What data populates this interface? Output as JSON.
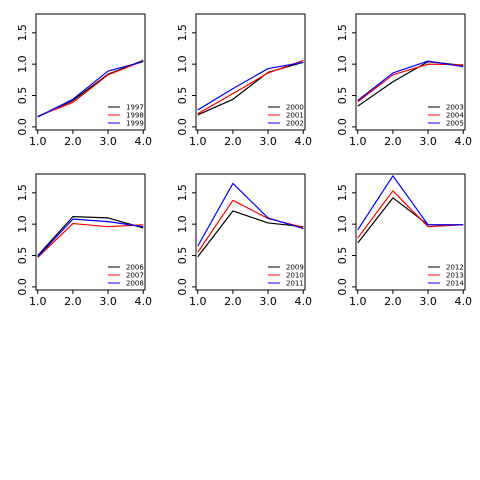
{
  "chart_data": [
    {
      "type": "line",
      "x": [
        1,
        2,
        3,
        4
      ],
      "xticks": [
        "1.0",
        "2.0",
        "3.0",
        "4.0"
      ],
      "yticks": [
        "0.0",
        "0.5",
        "1.0",
        "1.5"
      ],
      "ylim": [
        -0.05,
        1.8
      ],
      "xlim": [
        0.95,
        4.05
      ],
      "legend_position": "bottom-right",
      "series": [
        {
          "name": "1997",
          "color": "#000000",
          "values": [
            0.16,
            0.42,
            0.84,
            1.06
          ]
        },
        {
          "name": "1998",
          "color": "#ff0000",
          "values": [
            0.17,
            0.39,
            0.83,
            1.05
          ]
        },
        {
          "name": "1999",
          "color": "#0000ff",
          "values": [
            0.16,
            0.44,
            0.89,
            1.04
          ]
        }
      ]
    },
    {
      "type": "line",
      "x": [
        1,
        2,
        3,
        4
      ],
      "xticks": [
        "1.0",
        "2.0",
        "3.0",
        "4.0"
      ],
      "yticks": [
        "0.0",
        "0.5",
        "1.0",
        "1.5"
      ],
      "ylim": [
        -0.05,
        1.8
      ],
      "xlim": [
        0.95,
        4.05
      ],
      "legend_position": "bottom-right",
      "series": [
        {
          "name": "2000",
          "color": "#000000",
          "values": [
            0.19,
            0.44,
            0.87,
            1.03
          ]
        },
        {
          "name": "2001",
          "color": "#ff0000",
          "values": [
            0.21,
            0.53,
            0.86,
            1.06
          ]
        },
        {
          "name": "2002",
          "color": "#0000ff",
          "values": [
            0.27,
            0.61,
            0.93,
            1.03
          ]
        }
      ]
    },
    {
      "type": "line",
      "x": [
        1,
        2,
        3,
        4
      ],
      "xticks": [
        "1.0",
        "2.0",
        "3.0",
        "4.0"
      ],
      "yticks": [
        "0.0",
        "0.5",
        "1.0",
        "1.5"
      ],
      "ylim": [
        -0.05,
        1.8
      ],
      "xlim": [
        0.95,
        4.05
      ],
      "legend_position": "bottom-right",
      "series": [
        {
          "name": "2003",
          "color": "#000000",
          "values": [
            0.33,
            0.72,
            1.04,
            0.98
          ]
        },
        {
          "name": "2004",
          "color": "#ff0000",
          "values": [
            0.4,
            0.83,
            1.0,
            0.99
          ]
        },
        {
          "name": "2005",
          "color": "#0000ff",
          "values": [
            0.42,
            0.86,
            1.05,
            0.96
          ]
        }
      ]
    },
    {
      "type": "line",
      "x": [
        1,
        2,
        3,
        4
      ],
      "xticks": [
        "1.0",
        "2.0",
        "3.0",
        "4.0"
      ],
      "yticks": [
        "0.0",
        "0.5",
        "1.0",
        "1.5"
      ],
      "ylim": [
        -0.05,
        1.8
      ],
      "xlim": [
        0.95,
        4.05
      ],
      "legend_position": "bottom-right",
      "series": [
        {
          "name": "2006",
          "color": "#000000",
          "values": [
            0.5,
            1.12,
            1.1,
            0.94
          ]
        },
        {
          "name": "2007",
          "color": "#ff0000",
          "values": [
            0.47,
            1.01,
            0.96,
            0.99
          ]
        },
        {
          "name": "2008",
          "color": "#0000ff",
          "values": [
            0.48,
            1.08,
            1.04,
            0.96
          ]
        }
      ]
    },
    {
      "type": "line",
      "x": [
        1,
        2,
        3,
        4
      ],
      "xticks": [
        "1.0",
        "2.0",
        "3.0",
        "4.0"
      ],
      "yticks": [
        "0.0",
        "0.5",
        "1.0",
        "1.5"
      ],
      "ylim": [
        -0.05,
        1.8
      ],
      "xlim": [
        0.95,
        4.05
      ],
      "legend_position": "bottom-right",
      "series": [
        {
          "name": "2009",
          "color": "#000000",
          "values": [
            0.48,
            1.21,
            1.02,
            0.96
          ]
        },
        {
          "name": "2010",
          "color": "#ff0000",
          "values": [
            0.55,
            1.38,
            1.09,
            0.95
          ]
        },
        {
          "name": "2011",
          "color": "#0000ff",
          "values": [
            0.65,
            1.65,
            1.1,
            0.93
          ]
        }
      ]
    },
    {
      "type": "line",
      "x": [
        1,
        2,
        3,
        4
      ],
      "xticks": [
        "1.0",
        "2.0",
        "3.0",
        "4.0"
      ],
      "yticks": [
        "0.0",
        "0.5",
        "1.0",
        "1.5"
      ],
      "ylim": [
        -0.05,
        1.8
      ],
      "xlim": [
        0.95,
        4.05
      ],
      "legend_position": "bottom-right",
      "series": [
        {
          "name": "2012",
          "color": "#000000",
          "values": [
            0.7,
            1.42,
            0.99,
            0.99
          ]
        },
        {
          "name": "2013",
          "color": "#ff0000",
          "values": [
            0.78,
            1.53,
            0.96,
            0.99
          ]
        },
        {
          "name": "2014",
          "color": "#0000ff",
          "values": [
            0.91,
            1.77,
            0.99,
            0.99
          ]
        }
      ]
    }
  ]
}
